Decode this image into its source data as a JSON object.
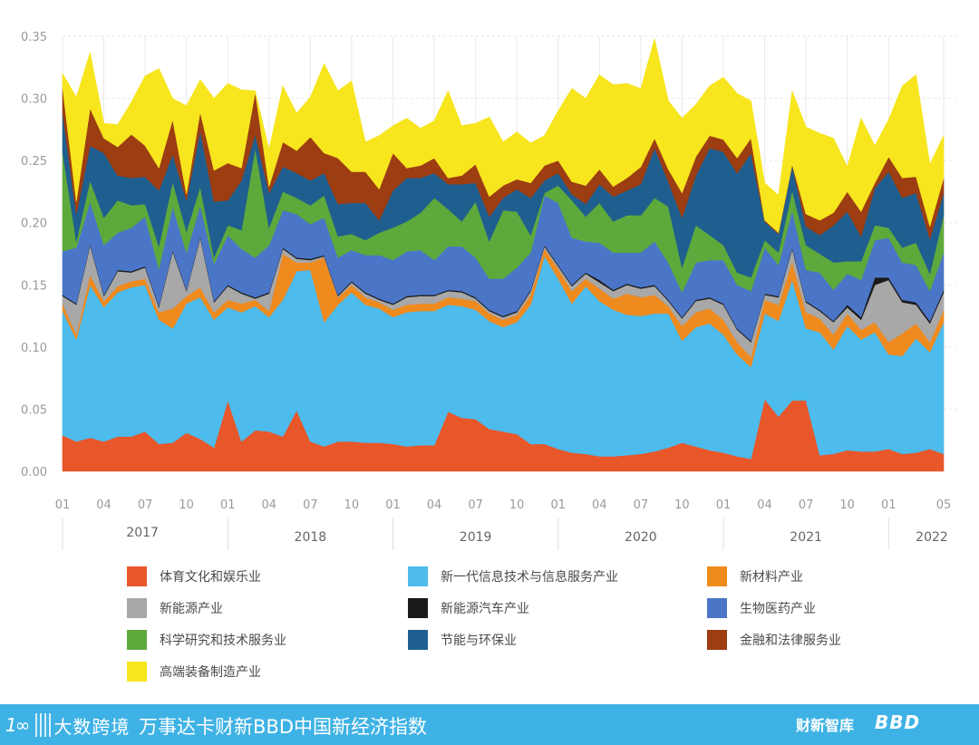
{
  "chart_data": {
    "type": "area",
    "stacked": true,
    "months": [
      "2017-01",
      "2017-02",
      "2017-03",
      "2017-04",
      "2017-05",
      "2017-06",
      "2017-07",
      "2017-08",
      "2017-09",
      "2017-10",
      "2017-11",
      "2017-12",
      "2018-01",
      "2018-02",
      "2018-03",
      "2018-04",
      "2018-05",
      "2018-06",
      "2018-07",
      "2018-08",
      "2018-09",
      "2018-10",
      "2018-11",
      "2018-12",
      "2019-01",
      "2019-02",
      "2019-03",
      "2019-04",
      "2019-05",
      "2019-06",
      "2019-07",
      "2019-08",
      "2019-09",
      "2019-10",
      "2019-11",
      "2019-12",
      "2020-01",
      "2020-02",
      "2020-03",
      "2020-04",
      "2020-05",
      "2020-06",
      "2020-07",
      "2020-08",
      "2020-09",
      "2020-10",
      "2020-11",
      "2020-12",
      "2021-01",
      "2021-02",
      "2021-03",
      "2021-04",
      "2021-05",
      "2021-06",
      "2021-07",
      "2021-08",
      "2021-09",
      "2021-10",
      "2021-11",
      "2021-12",
      "2022-01",
      "2022-02",
      "2022-03",
      "2022-04",
      "2022-05"
    ],
    "x_ticks": [
      "01",
      "04",
      "07",
      "10",
      "01",
      "04",
      "07",
      "10",
      "01",
      "04",
      "07",
      "10",
      "01",
      "04",
      "07",
      "10",
      "01",
      "04",
      "07",
      "10",
      "01",
      "05"
    ],
    "x_tick_index": [
      0,
      3,
      6,
      9,
      12,
      15,
      18,
      21,
      24,
      27,
      30,
      33,
      36,
      39,
      42,
      45,
      48,
      51,
      54,
      57,
      60,
      64
    ],
    "year_labels": [
      "2017",
      "2018",
      "2019",
      "2020",
      "2021",
      "2022"
    ],
    "y_ticks": [
      "0.00",
      "0.05",
      "0.10",
      "0.15",
      "0.20",
      "0.25",
      "0.30",
      "0.35"
    ],
    "ylim": [
      0,
      0.35
    ],
    "grid": true,
    "legend_position": "bottom",
    "series": [
      {
        "name": "体育文化和娱乐业",
        "color": "#e8572a",
        "values": [
          0.029,
          0.024,
          0.027,
          0.024,
          0.028,
          0.028,
          0.032,
          0.022,
          0.023,
          0.031,
          0.026,
          0.019,
          0.057,
          0.024,
          0.033,
          0.032,
          0.028,
          0.049,
          0.024,
          0.02,
          0.024,
          0.024,
          0.023,
          0.023,
          0.022,
          0.02,
          0.021,
          0.021,
          0.048,
          0.043,
          0.042,
          0.034,
          0.032,
          0.03,
          0.022,
          0.022,
          0.018,
          0.015,
          0.014,
          0.012,
          0.012,
          0.013,
          0.014,
          0.016,
          0.019,
          0.023,
          0.02,
          0.017,
          0.015,
          0.012,
          0.01,
          0.058,
          0.044,
          0.057,
          0.057,
          0.013,
          0.014,
          0.017,
          0.016,
          0.016,
          0.018,
          0.014,
          0.015,
          0.018,
          0.014
        ]
      },
      {
        "name": "新一代信息技术与信息服务产业",
        "color": "#4dbbec",
        "values": [
          0.1,
          0.082,
          0.123,
          0.108,
          0.116,
          0.12,
          0.118,
          0.1,
          0.092,
          0.104,
          0.114,
          0.103,
          0.075,
          0.104,
          0.1,
          0.092,
          0.11,
          0.112,
          0.138,
          0.1,
          0.11,
          0.12,
          0.111,
          0.108,
          0.102,
          0.108,
          0.108,
          0.108,
          0.086,
          0.09,
          0.088,
          0.087,
          0.084,
          0.09,
          0.112,
          0.151,
          0.137,
          0.12,
          0.135,
          0.125,
          0.118,
          0.113,
          0.111,
          0.111,
          0.108,
          0.082,
          0.096,
          0.102,
          0.095,
          0.082,
          0.074,
          0.069,
          0.077,
          0.097,
          0.058,
          0.099,
          0.084,
          0.1,
          0.09,
          0.096,
          0.076,
          0.079,
          0.092,
          0.078,
          0.106
        ]
      },
      {
        "name": "新材料产业",
        "color": "#ef8a1e",
        "values": [
          0.006,
          0.004,
          0.008,
          0.005,
          0.005,
          0.005,
          0.005,
          0.006,
          0.016,
          0.006,
          0.008,
          0.006,
          0.006,
          0.007,
          0.005,
          0.005,
          0.037,
          0.007,
          0.006,
          0.052,
          0.006,
          0.006,
          0.006,
          0.005,
          0.006,
          0.006,
          0.006,
          0.006,
          0.006,
          0.006,
          0.007,
          0.006,
          0.006,
          0.006,
          0.008,
          0.006,
          0.008,
          0.01,
          0.006,
          0.01,
          0.009,
          0.017,
          0.015,
          0.015,
          0.006,
          0.012,
          0.012,
          0.012,
          0.012,
          0.01,
          0.008,
          0.011,
          0.013,
          0.015,
          0.013,
          0.011,
          0.012,
          0.01,
          0.008,
          0.008,
          0.01,
          0.018,
          0.012,
          0.008,
          0.01
        ]
      },
      {
        "name": "新能源产业",
        "color": "#a8a8a8",
        "values": [
          0.006,
          0.024,
          0.024,
          0.004,
          0.012,
          0.007,
          0.009,
          0.004,
          0.046,
          0.004,
          0.04,
          0.008,
          0.011,
          0.008,
          0.001,
          0.014,
          0.004,
          0.003,
          0.002,
          0.001,
          0.001,
          0.002,
          0.003,
          0.002,
          0.004,
          0.006,
          0.006,
          0.006,
          0.005,
          0.005,
          0.002,
          0.002,
          0.002,
          0.002,
          0.003,
          0.002,
          0.002,
          0.004,
          0.004,
          0.005,
          0.006,
          0.007,
          0.007,
          0.007,
          0.004,
          0.006,
          0.009,
          0.008,
          0.012,
          0.01,
          0.012,
          0.004,
          0.006,
          0.01,
          0.008,
          0.006,
          0.01,
          0.005,
          0.008,
          0.03,
          0.05,
          0.025,
          0.015,
          0.015,
          0.014
        ]
      },
      {
        "name": "新能源汽车产业",
        "color": "#1a1a1a",
        "values": [
          0.001,
          0.001,
          0.001,
          0.001,
          0.001,
          0.001,
          0.001,
          0.001,
          0.001,
          0.001,
          0.001,
          0.001,
          0.001,
          0.001,
          0.001,
          0.001,
          0.001,
          0.001,
          0.001,
          0.001,
          0.001,
          0.001,
          0.001,
          0.001,
          0.001,
          0.001,
          0.001,
          0.001,
          0.001,
          0.001,
          0.001,
          0.001,
          0.001,
          0.001,
          0.001,
          0.001,
          0.001,
          0.001,
          0.001,
          0.002,
          0.001,
          0.001,
          0.001,
          0.001,
          0.001,
          0.001,
          0.001,
          0.001,
          0.001,
          0.001,
          0.001,
          0.001,
          0.001,
          0.001,
          0.001,
          0.001,
          0.001,
          0.002,
          0.002,
          0.006,
          0.002,
          0.002,
          0.002,
          0.002,
          0.002
        ]
      },
      {
        "name": "生物医药产业",
        "color": "#4b76c8",
        "values": [
          0.035,
          0.045,
          0.034,
          0.04,
          0.03,
          0.035,
          0.04,
          0.03,
          0.035,
          0.03,
          0.025,
          0.03,
          0.04,
          0.035,
          0.032,
          0.038,
          0.03,
          0.035,
          0.028,
          0.03,
          0.03,
          0.025,
          0.03,
          0.035,
          0.035,
          0.036,
          0.036,
          0.028,
          0.035,
          0.036,
          0.032,
          0.025,
          0.03,
          0.035,
          0.03,
          0.04,
          0.05,
          0.038,
          0.025,
          0.03,
          0.03,
          0.025,
          0.028,
          0.035,
          0.03,
          0.02,
          0.03,
          0.03,
          0.035,
          0.035,
          0.04,
          0.037,
          0.025,
          0.03,
          0.025,
          0.03,
          0.025,
          0.025,
          0.03,
          0.03,
          0.032,
          0.03,
          0.03,
          0.024,
          0.03
        ]
      },
      {
        "name": "科学研究和技术服务业",
        "color": "#5ea93b",
        "values": [
          0.08,
          0.005,
          0.017,
          0.022,
          0.026,
          0.018,
          0.01,
          0.018,
          0.02,
          0.017,
          0.015,
          0.005,
          0.008,
          0.015,
          0.088,
          0.014,
          0.015,
          0.013,
          0.015,
          0.018,
          0.017,
          0.013,
          0.012,
          0.018,
          0.026,
          0.024,
          0.03,
          0.05,
          0.03,
          0.02,
          0.045,
          0.03,
          0.055,
          0.045,
          0.014,
          0.002,
          0.014,
          0.03,
          0.02,
          0.032,
          0.025,
          0.03,
          0.03,
          0.035,
          0.045,
          0.02,
          0.03,
          0.02,
          0.012,
          0.01,
          0.011,
          0.006,
          0.01,
          0.016,
          0.02,
          0.015,
          0.022,
          0.01,
          0.015,
          0.012,
          0.008,
          0.012,
          0.018,
          0.014,
          0.03
        ]
      },
      {
        "name": "节能与环保业",
        "color": "#1f5f8f",
        "values": [
          0.032,
          0.022,
          0.028,
          0.052,
          0.02,
          0.022,
          0.022,
          0.045,
          0.022,
          0.025,
          0.045,
          0.045,
          0.02,
          0.04,
          0.011,
          0.028,
          0.02,
          0.02,
          0.02,
          0.018,
          0.026,
          0.025,
          0.03,
          0.01,
          0.03,
          0.035,
          0.028,
          0.02,
          0.02,
          0.03,
          0.015,
          0.02,
          0.01,
          0.018,
          0.03,
          0.01,
          0.01,
          0.005,
          0.01,
          0.015,
          0.02,
          0.02,
          0.025,
          0.04,
          0.02,
          0.04,
          0.04,
          0.07,
          0.075,
          0.08,
          0.1,
          0.015,
          0.015,
          0.02,
          0.015,
          0.015,
          0.03,
          0.04,
          0.02,
          0.03,
          0.045,
          0.04,
          0.04,
          0.028,
          0.018
        ]
      },
      {
        "name": "金融和法律服务业",
        "color": "#9c3d12",
        "values": [
          0.02,
          0.01,
          0.03,
          0.012,
          0.023,
          0.035,
          0.025,
          0.018,
          0.028,
          0.005,
          0.015,
          0.025,
          0.03,
          0.01,
          0.034,
          0.005,
          0.02,
          0.018,
          0.035,
          0.016,
          0.037,
          0.025,
          0.025,
          0.025,
          0.03,
          0.008,
          0.01,
          0.012,
          0.005,
          0.007,
          0.015,
          0.016,
          0.01,
          0.008,
          0.012,
          0.012,
          0.01,
          0.01,
          0.015,
          0.012,
          0.008,
          0.01,
          0.014,
          0.008,
          0.01,
          0.02,
          0.015,
          0.01,
          0.01,
          0.012,
          0.012,
          0.001,
          0.001,
          0.001,
          0.01,
          0.012,
          0.01,
          0.016,
          0.02,
          0.004,
          0.012,
          0.016,
          0.013,
          0.01,
          0.012
        ]
      },
      {
        "name": "高端装备制造产业",
        "color": "#f7e51e",
        "values": [
          0.011,
          0.084,
          0.045,
          0.012,
          0.018,
          0.026,
          0.056,
          0.08,
          0.017,
          0.071,
          0.026,
          0.058,
          0.064,
          0.063,
          0.001,
          0.03,
          0.045,
          0.03,
          0.032,
          0.072,
          0.054,
          0.073,
          0.024,
          0.043,
          0.022,
          0.04,
          0.03,
          0.03,
          0.07,
          0.04,
          0.033,
          0.064,
          0.035,
          0.038,
          0.032,
          0.024,
          0.04,
          0.075,
          0.07,
          0.076,
          0.082,
          0.076,
          0.063,
          0.08,
          0.055,
          0.06,
          0.042,
          0.04,
          0.05,
          0.052,
          0.03,
          0.03,
          0.03,
          0.059,
          0.07,
          0.07,
          0.06,
          0.02,
          0.075,
          0.03,
          0.03,
          0.074,
          0.082,
          0.05,
          0.034
        ]
      }
    ]
  },
  "footer": {
    "logo_mark": "1∞",
    "logo_text": "大数跨境",
    "title": "万事达卡财新BBD中国新经济指数",
    "brand_caixin": "财新智库",
    "brand_bbd": "BBD"
  }
}
